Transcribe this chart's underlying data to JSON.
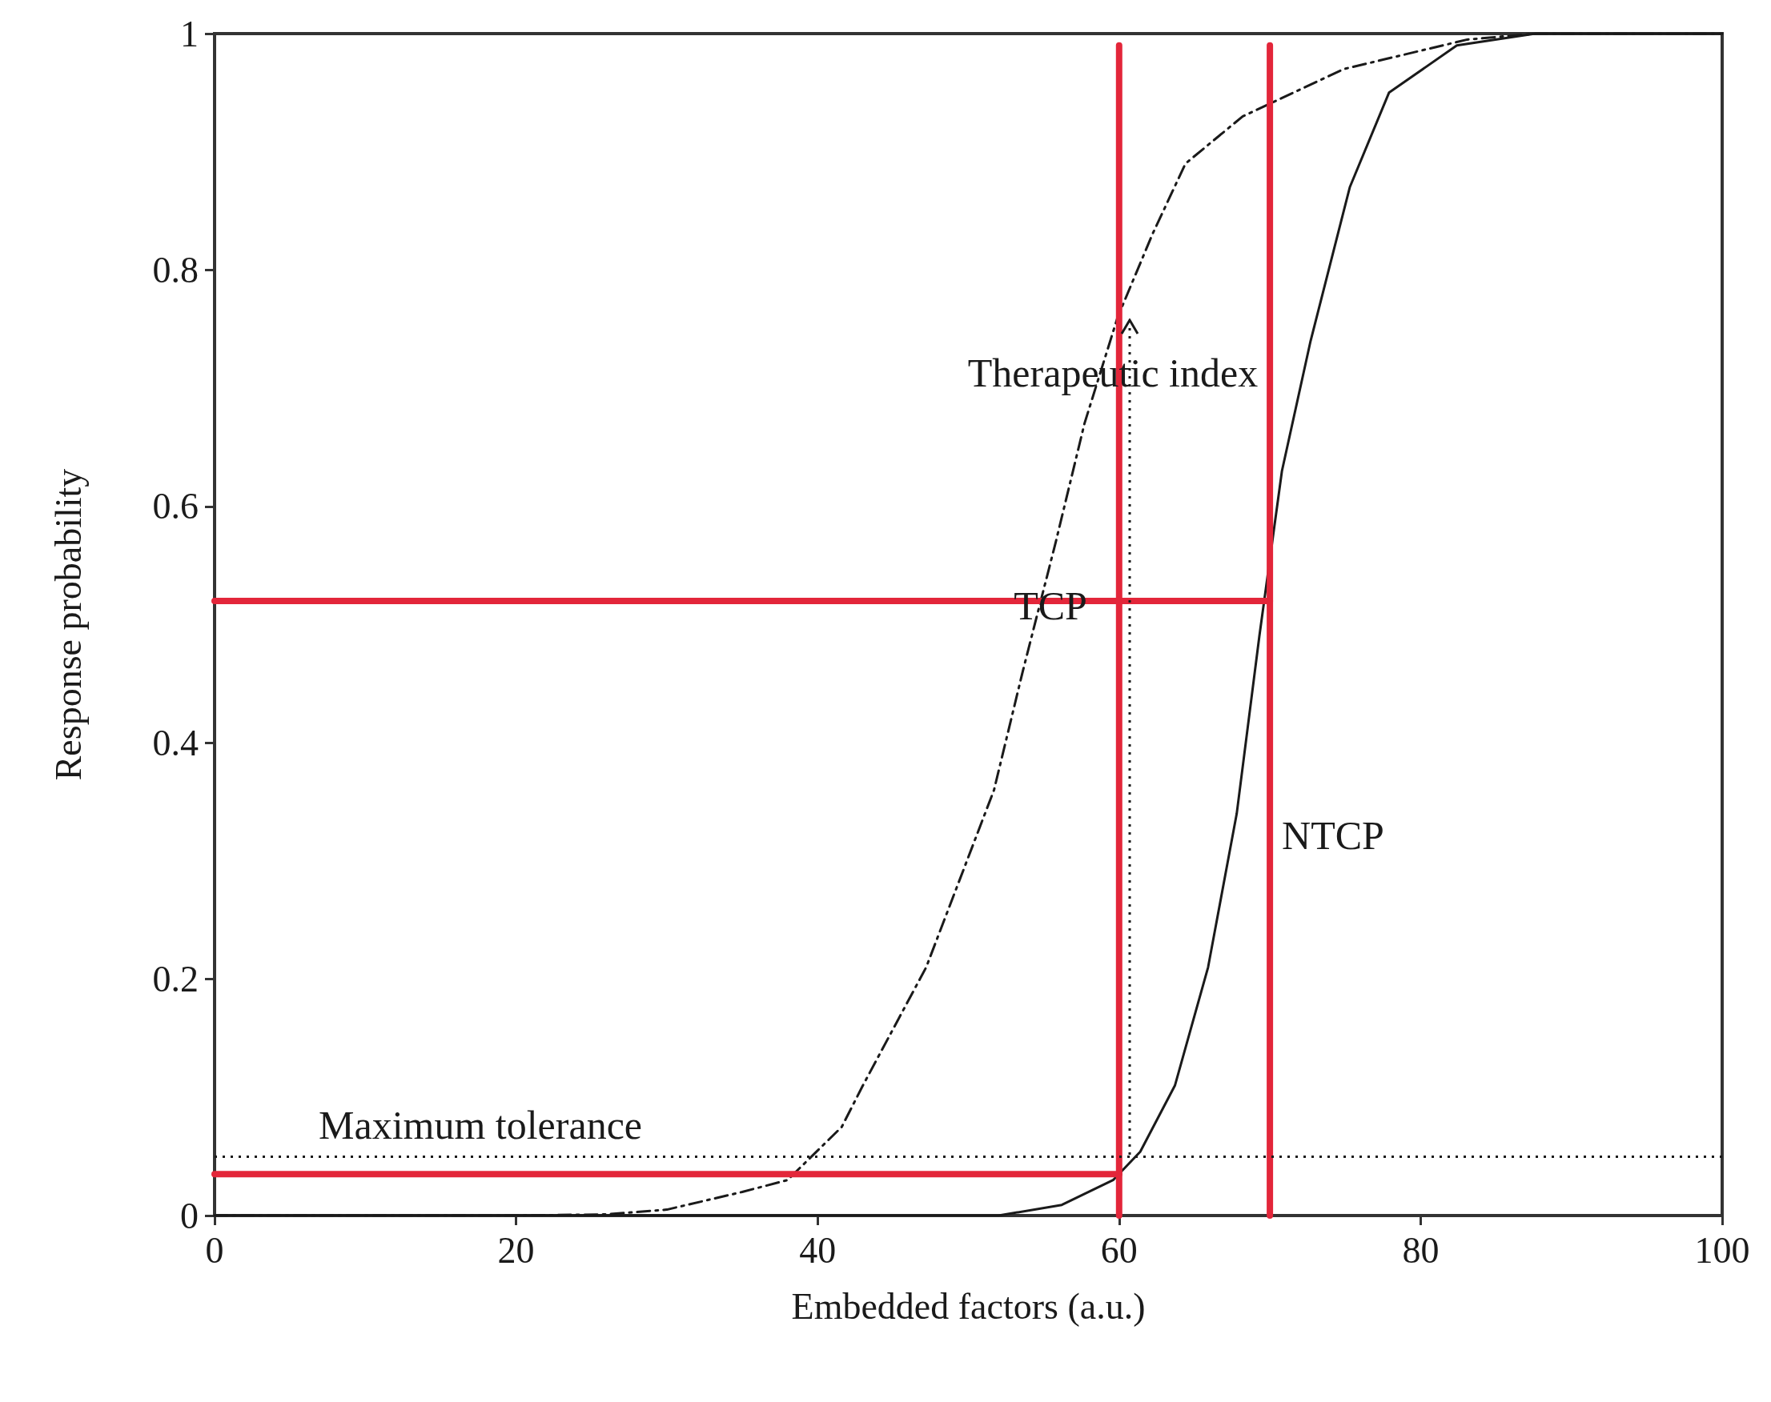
{
  "chart_data": {
    "type": "line",
    "xlabel": "Embedded factors (a.u.)",
    "ylabel": "Response probability",
    "xlim": [
      0,
      100
    ],
    "xticks": [
      0,
      20,
      40,
      60,
      80,
      100
    ],
    "ylim": [
      0,
      1
    ],
    "yticks": [
      0,
      0.2,
      0.4,
      0.6,
      0.8,
      1
    ],
    "grid": false,
    "marker": "none",
    "series": [
      {
        "color": "#1a1a1a",
        "line_style": "dashed",
        "x": [
          0,
          20,
          26,
          30,
          35,
          38,
          41.6,
          43,
          47.2,
          51.7,
          53.6,
          55.8,
          57.7,
          59.9,
          62.2,
          64.4,
          68.2,
          74.9,
          83.1,
          87.6,
          100
        ],
        "values": [
          0,
          0,
          0.001,
          0.005,
          0.02,
          0.03,
          0.075,
          0.11,
          0.21,
          0.36,
          0.46,
          0.57,
          0.67,
          0.76,
          0.83,
          0.89,
          0.93,
          0.97,
          0.995,
          1,
          1
        ]
      },
      {
        "color": "#1a1a1a",
        "line_style": "solid",
        "x": [
          0,
          52,
          56.2,
          59.6,
          61.4,
          63.7,
          65.9,
          67.8,
          69.3,
          70.8,
          72.7,
          75.3,
          77.9,
          82.4,
          87.6,
          100
        ],
        "values": [
          0,
          0,
          0.009,
          0.03,
          0.054,
          0.11,
          0.21,
          0.34,
          0.49,
          0.63,
          0.74,
          0.87,
          0.95,
          0.99,
          1,
          1
        ]
      },
      {
        "color": "#e3263a",
        "line_style": "solid",
        "x": [
          60,
          60
        ],
        "values": [
          0,
          0.99
        ]
      },
      {
        "color": "#e3263a",
        "line_style": "solid",
        "x": [
          70,
          70
        ],
        "values": [
          0,
          0.99
        ]
      },
      {
        "color": "#e3263a",
        "line_style": "solid",
        "x": [
          0,
          70
        ],
        "values": [
          0.52,
          0.52
        ]
      },
      {
        "color": "#e3263a",
        "line_style": "solid",
        "x": [
          0,
          60
        ],
        "values": [
          0.035,
          0.035
        ]
      }
    ],
    "ref_lines": [
      {
        "axis": "y",
        "value": 0.05,
        "label": "Maximum tolerance",
        "color": "#1a1a1a",
        "line_style": "dotted"
      }
    ],
    "annotations": [
      "Therapeutic index",
      "TCP",
      "NTCP"
    ]
  }
}
